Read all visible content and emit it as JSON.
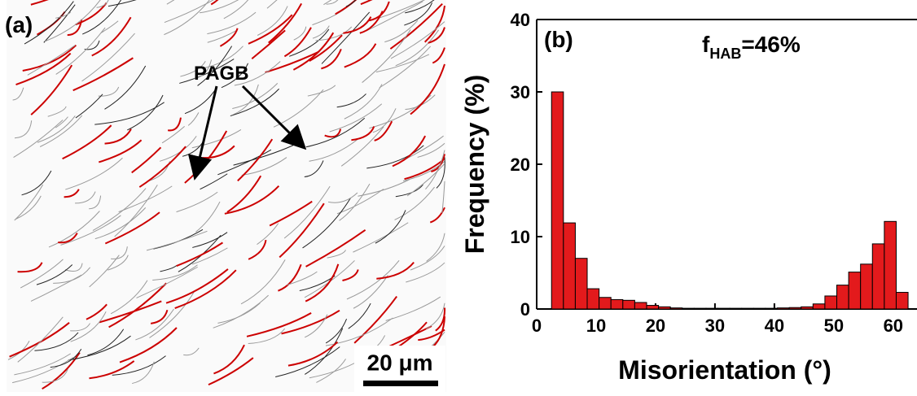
{
  "panel_a": {
    "label": "(a)",
    "annotation": "PAGB",
    "scale_bar": "20 μm"
  },
  "chart_data": {
    "type": "histogram",
    "panel_label": "(b)",
    "annotation": {
      "main": "f",
      "subscript": "HAB",
      "rest": "=46%"
    },
    "xlabel": "Misorientation (°)",
    "ylabel": "Frequency (%)",
    "color": "#e31a1c",
    "bins": [
      2.5,
      4.5,
      6.5,
      8.5,
      10.5,
      12.5,
      14.5,
      16.5,
      18.5,
      20.5,
      22.5,
      24.5,
      26.5,
      28.5,
      30.5,
      32.5,
      34.5,
      36.5,
      38.5,
      40.5,
      42.5,
      44.5,
      46.5,
      48.5,
      50.5,
      52.5,
      54.5,
      56.5,
      58.5,
      60.5,
      62.5
    ],
    "values": [
      30,
      11.9,
      7.0,
      2.8,
      1.6,
      1.3,
      1.2,
      0.9,
      0.5,
      0.3,
      0.15,
      0.1,
      0.1,
      0.1,
      0.1,
      0.1,
      0.1,
      0.1,
      0.1,
      0.15,
      0.2,
      0.3,
      0.7,
      1.8,
      3.3,
      5.1,
      6.2,
      9.0,
      12.1,
      2.3
    ],
    "xlim": [
      0,
      64
    ],
    "ylim": [
      0,
      40
    ],
    "xticks": [
      0,
      10,
      20,
      30,
      40,
      50,
      60
    ],
    "yticks": [
      0,
      10,
      20,
      30,
      40
    ]
  }
}
